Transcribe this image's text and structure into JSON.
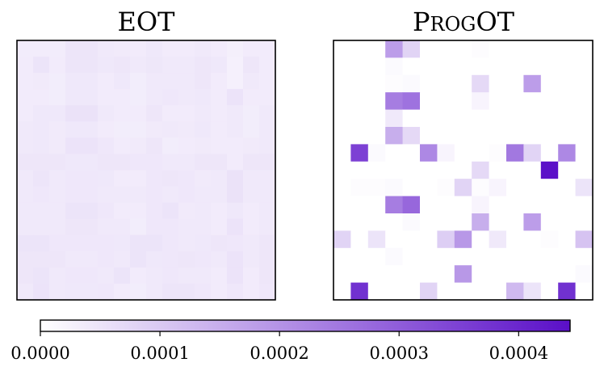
{
  "chart_data": [
    {
      "type": "heatmap",
      "title": "EOT",
      "rows": 16,
      "cols": 16,
      "xticks": false,
      "yticks": false,
      "values": [
        [
          3.5e-05,
          3.5e-05,
          3.5e-05,
          4.8e-05,
          4.8e-05,
          4e-05,
          3.8e-05,
          3.6e-05,
          4.2e-05,
          3.6e-05,
          3.6e-05,
          4e-05,
          3.6e-05,
          3e-05,
          3.6e-05,
          3.6e-05
        ],
        [
          3.6e-05,
          5e-05,
          3.6e-05,
          4.8e-05,
          4.8e-05,
          4.2e-05,
          4.6e-05,
          4e-05,
          4.5e-05,
          4e-05,
          4e-05,
          4.6e-05,
          4.2e-05,
          2.8e-05,
          4.6e-05,
          3.6e-05
        ],
        [
          3.6e-05,
          3.8e-05,
          3.4e-05,
          4.2e-05,
          4.2e-05,
          3.6e-05,
          4.2e-05,
          3.4e-05,
          4e-05,
          4e-05,
          4e-05,
          4.6e-05,
          3.6e-05,
          2.8e-05,
          4e-05,
          3.6e-05
        ],
        [
          3.6e-05,
          3.6e-05,
          3.4e-05,
          4.2e-05,
          4.2e-05,
          3.6e-05,
          3.6e-05,
          3.4e-05,
          4e-05,
          4.4e-05,
          4e-05,
          4.2e-05,
          3.6e-05,
          5.2e-05,
          3.6e-05,
          3.6e-05
        ],
        [
          3.6e-05,
          4.2e-05,
          4.2e-05,
          5.4e-05,
          5.4e-05,
          4e-05,
          3.6e-05,
          3.6e-05,
          4.6e-05,
          3.6e-05,
          3.6e-05,
          4e-05,
          3.6e-05,
          4e-05,
          3.4e-05,
          4e-05
        ],
        [
          4e-05,
          4.2e-05,
          3.8e-05,
          4.2e-05,
          4.2e-05,
          3.6e-05,
          3.4e-05,
          3.4e-05,
          3.8e-05,
          4e-05,
          3.8e-05,
          4.2e-05,
          3.6e-05,
          4e-05,
          3.4e-05,
          4e-05
        ],
        [
          4e-05,
          4.2e-05,
          3.8e-05,
          5.2e-05,
          5.2e-05,
          4.4e-05,
          3.6e-05,
          3.8e-05,
          4.6e-05,
          3.4e-05,
          3.6e-05,
          3.8e-05,
          3.6e-05,
          3.6e-05,
          3.8e-05,
          4e-05
        ],
        [
          4.6e-05,
          4.6e-05,
          4.6e-05,
          4.2e-05,
          4.2e-05,
          4.6e-05,
          4.6e-05,
          4.4e-05,
          4.4e-05,
          4e-05,
          4e-05,
          4.6e-05,
          4.6e-05,
          3.6e-05,
          4.6e-05,
          4.6e-05
        ],
        [
          4e-05,
          4.8e-05,
          4e-05,
          4.4e-05,
          4.4e-05,
          4.2e-05,
          3.6e-05,
          3.6e-05,
          4.4e-05,
          4.6e-05,
          4.4e-05,
          3.8e-05,
          4e-05,
          5.4e-05,
          4e-05,
          4e-05
        ],
        [
          4e-05,
          4.4e-05,
          4e-05,
          4.4e-05,
          4.4e-05,
          4e-05,
          4e-05,
          4e-05,
          4.4e-05,
          4e-05,
          4.4e-05,
          4e-05,
          4e-05,
          5.4e-05,
          4e-05,
          4e-05
        ],
        [
          4e-05,
          4e-05,
          4e-05,
          5e-05,
          5e-05,
          4.4e-05,
          3.6e-05,
          3.6e-05,
          4.4e-05,
          5e-05,
          3.8e-05,
          4e-05,
          3.6e-05,
          4.2e-05,
          3.6e-05,
          4e-05
        ],
        [
          4e-05,
          4e-05,
          4e-05,
          4.6e-05,
          4.6e-05,
          4e-05,
          4e-05,
          3.4e-05,
          4.4e-05,
          4.4e-05,
          4e-05,
          4e-05,
          3.6e-05,
          5.2e-05,
          3.6e-05,
          4e-05
        ],
        [
          5e-05,
          5e-05,
          4.4e-05,
          4.4e-05,
          4.4e-05,
          4.4e-05,
          4.2e-05,
          5e-05,
          5e-05,
          4.4e-05,
          4e-05,
          4.2e-05,
          4.6e-05,
          4.4e-05,
          4e-05,
          4.6e-05
        ],
        [
          4.6e-05,
          4.6e-05,
          4.6e-05,
          4e-05,
          4e-05,
          4.4e-05,
          4e-05,
          5e-05,
          4.2e-05,
          4.4e-05,
          4.6e-05,
          4.4e-05,
          4e-05,
          5.2e-05,
          4e-05,
          4.6e-05
        ],
        [
          4.6e-05,
          5e-05,
          4e-05,
          4.4e-05,
          4.4e-05,
          4e-05,
          5e-05,
          3.6e-05,
          4e-05,
          4.4e-05,
          4e-05,
          4e-05,
          3.6e-05,
          5.2e-05,
          3.6e-05,
          4.6e-05
        ],
        [
          4e-05,
          5.2e-05,
          4e-05,
          4.2e-05,
          4.2e-05,
          4.4e-05,
          3.6e-05,
          3.4e-05,
          4e-05,
          4.8e-05,
          4.8e-05,
          4.4e-05,
          3.6e-05,
          4.4e-05,
          3.6e-05,
          4.4e-05
        ]
      ]
    },
    {
      "type": "heatmap",
      "title": "ProgOT",
      "rows": 15,
      "cols": 15,
      "xticks": false,
      "yticks": false,
      "values": [
        [
          0,
          0,
          0,
          0.00018,
          8e-05,
          0,
          0,
          0,
          5e-06,
          0,
          0,
          0,
          0,
          0,
          0
        ],
        [
          0,
          0,
          0,
          1e-05,
          0,
          0,
          0,
          0,
          0,
          0,
          0,
          0,
          0,
          0,
          0
        ],
        [
          0,
          0,
          0,
          5e-06,
          1e-05,
          0,
          0,
          0,
          7e-05,
          0,
          0,
          0.00018,
          0,
          0,
          0
        ],
        [
          0,
          0,
          0,
          0.00024,
          0.00026,
          0,
          0,
          0,
          2e-05,
          0,
          0,
          0,
          0,
          0,
          0
        ],
        [
          0,
          0,
          0,
          4e-05,
          0,
          0,
          0,
          0,
          0,
          0,
          0,
          0,
          0,
          0,
          0
        ],
        [
          0,
          0,
          0,
          0.00015,
          7e-05,
          0,
          0,
          0,
          0,
          0,
          0,
          0,
          0,
          0,
          0
        ],
        [
          0,
          0.00035,
          1e-05,
          0,
          0,
          0.00022,
          2e-05,
          0,
          0,
          5e-06,
          0.00025,
          8e-05,
          0,
          0.00022,
          0
        ],
        [
          0,
          0,
          0,
          0,
          0,
          0,
          0,
          0,
          7e-05,
          0,
          0,
          0,
          0.00044,
          0,
          0
        ],
        [
          0,
          5e-06,
          5e-06,
          1e-05,
          0,
          0,
          5e-06,
          8e-05,
          5e-06,
          2e-05,
          0,
          0,
          0,
          0,
          5e-05
        ],
        [
          0,
          0,
          0,
          0.00024,
          0.00028,
          0,
          0,
          0,
          2e-05,
          0,
          0,
          0,
          0,
          0,
          0
        ],
        [
          0,
          0,
          0,
          0,
          1e-05,
          0,
          0,
          0,
          0.00015,
          0,
          0,
          0.00018,
          0,
          0,
          0
        ],
        [
          8e-05,
          0,
          5e-05,
          0,
          0,
          0,
          9e-05,
          0.00019,
          0,
          4e-05,
          0,
          0,
          5e-06,
          0,
          0.00011
        ],
        [
          0,
          0,
          0,
          1e-05,
          0,
          0,
          0,
          0,
          0,
          0,
          0,
          0,
          0,
          0,
          0
        ],
        [
          0,
          0,
          0,
          0,
          0,
          0,
          0,
          0.00019,
          0,
          0,
          0,
          0,
          0,
          0,
          1e-05
        ],
        [
          0,
          0.00038,
          0,
          0,
          0,
          8e-05,
          0,
          0,
          0,
          0,
          0.00013,
          5e-05,
          0,
          0.00038,
          0
        ]
      ]
    }
  ],
  "colorbar": {
    "min": 0.0,
    "max": 0.000443,
    "color_low": "#ffffff",
    "color_high": "#5a0fc8",
    "ticks": [
      0.0,
      0.0001,
      0.0002,
      0.0003,
      0.0004
    ],
    "tick_labels": [
      "0.0000",
      "0.0001",
      "0.0002",
      "0.0003",
      "0.0004"
    ]
  },
  "panels": {
    "left_title": "EOT",
    "right_title_first": "P",
    "right_title_small": "ROG",
    "right_title_rest": "OT"
  }
}
